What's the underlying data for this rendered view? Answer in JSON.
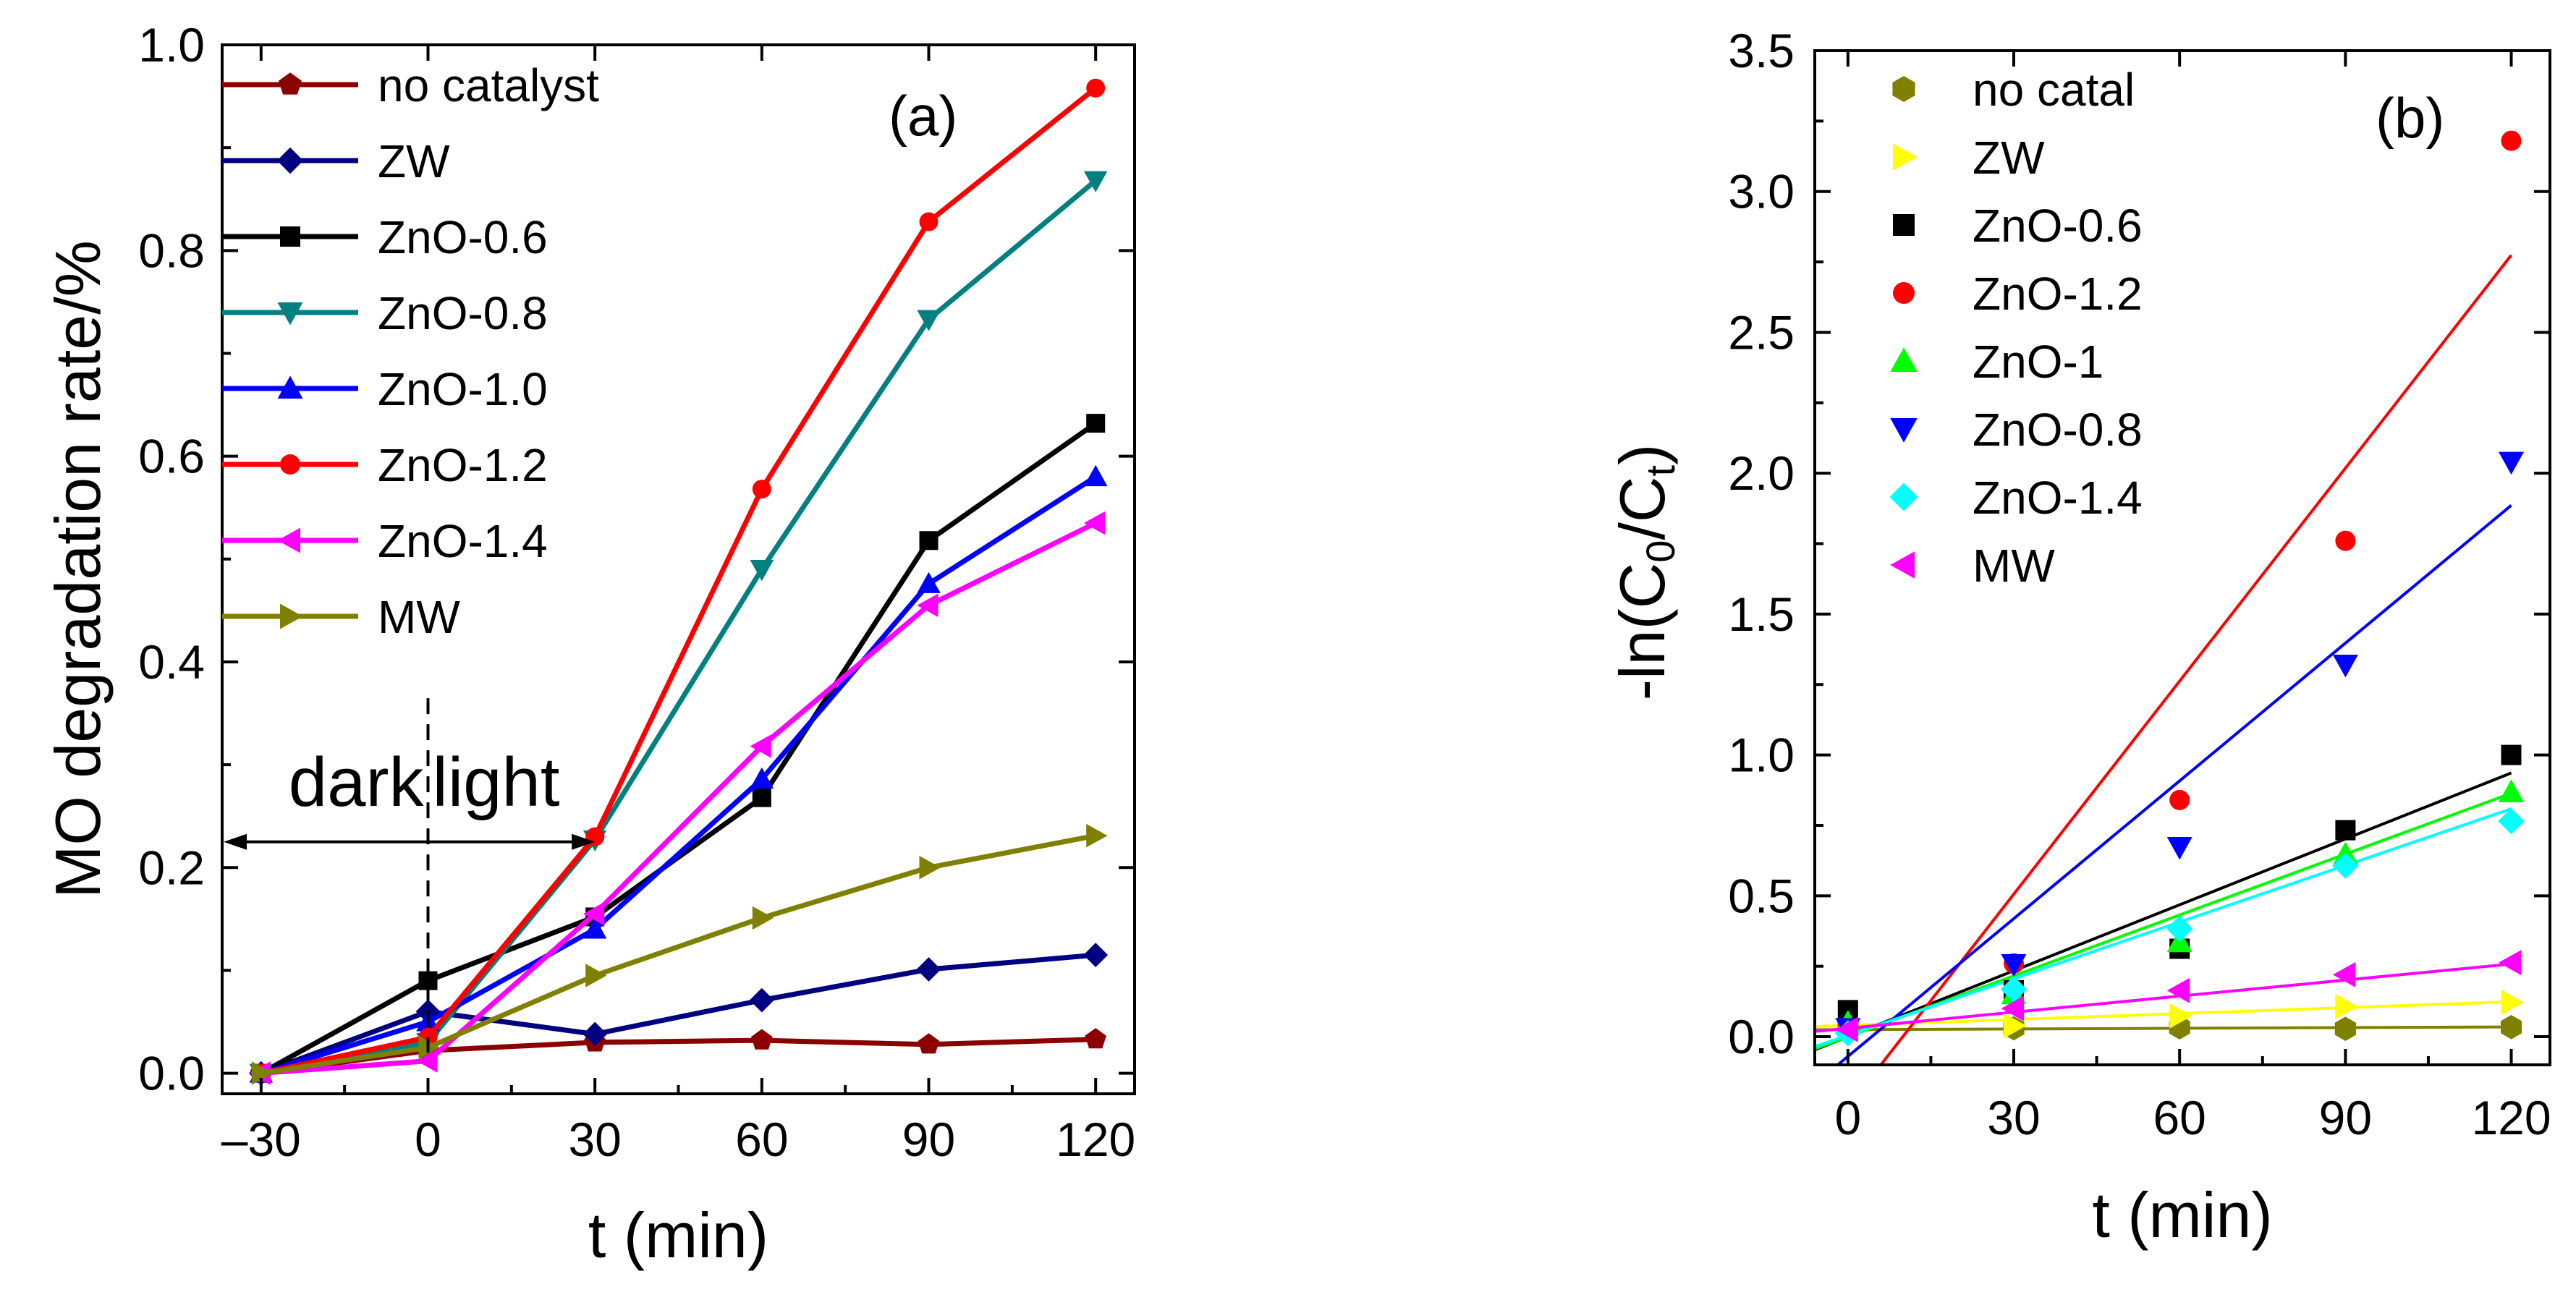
{
  "chart_data": [
    {
      "type": "line",
      "panel_label": "(a)",
      "xlabel": "t (min)",
      "ylabel": "MO degradation rate/%",
      "xlim": [
        -37,
        127
      ],
      "ylim": [
        -0.02,
        1.0
      ],
      "xticks": [
        -30,
        0,
        30,
        60,
        90,
        120
      ],
      "xtick_labels": [
        "–30",
        "0",
        "30",
        "60",
        "90",
        "120"
      ],
      "yticks": [
        0.0,
        0.2,
        0.4,
        0.6,
        0.8,
        1.0
      ],
      "ytick_labels": [
        "0.0",
        "0.2",
        "0.4",
        "0.6",
        "0.8",
        "1.0"
      ],
      "x": [
        -30,
        0,
        30,
        60,
        90,
        120
      ],
      "legend_position": "top-left",
      "series": [
        {
          "name": "no catalyst",
          "color": "#8b0000",
          "marker": "pentagon",
          "values": [
            0.0,
            0.022,
            0.03,
            0.032,
            0.028,
            0.033
          ]
        },
        {
          "name": "ZW",
          "color": "#000080",
          "marker": "diamond",
          "values": [
            0.0,
            0.06,
            0.038,
            0.071,
            0.101,
            0.115
          ]
        },
        {
          "name": "ZnO-0.6",
          "color": "#000000",
          "marker": "square",
          "values": [
            0.0,
            0.09,
            0.152,
            0.268,
            0.518,
            0.632
          ]
        },
        {
          "name": "ZnO-0.8",
          "color": "#008080",
          "marker": "triangle-down",
          "values": [
            0.0,
            0.03,
            0.227,
            0.49,
            0.733,
            0.868
          ]
        },
        {
          "name": "ZnO-1.0",
          "color": "#0000ff",
          "marker": "triangle-up",
          "values": [
            0.0,
            0.05,
            0.14,
            0.286,
            0.476,
            0.58
          ]
        },
        {
          "name": "ZnO-1.2",
          "color": "#ff0000",
          "marker": "circle",
          "values": [
            0.0,
            0.035,
            0.23,
            0.568,
            0.828,
            0.958
          ]
        },
        {
          "name": "ZnO-1.4",
          "color": "#ff00ff",
          "marker": "triangle-left",
          "values": [
            0.0,
            0.012,
            0.155,
            0.318,
            0.455,
            0.535
          ]
        },
        {
          "name": "MW",
          "color": "#808000",
          "marker": "triangle-right",
          "values": [
            0.0,
            0.025,
            0.095,
            0.151,
            0.2,
            0.231
          ]
        }
      ],
      "annotations": {
        "dark": "dark",
        "light": "light",
        "boundary_x": 0,
        "arrow_y": 0.225,
        "arrow_x": [
          -37,
          30
        ]
      }
    },
    {
      "type": "scatter",
      "panel_label": "(b)",
      "xlabel": "t (min)",
      "ylabel_prefix": "-ln(C",
      "ylabel_sub1": "0",
      "ylabel_mid": "/C",
      "ylabel_sub2": "t",
      "ylabel_suffix": ")",
      "xlim": [
        -6,
        127
      ],
      "ylim": [
        -0.1,
        3.5
      ],
      "xticks": [
        0,
        30,
        60,
        90,
        120
      ],
      "xtick_labels": [
        "0",
        "30",
        "60",
        "90",
        "120"
      ],
      "yticks": [
        0.0,
        0.5,
        1.0,
        1.5,
        2.0,
        2.5,
        3.0,
        3.5
      ],
      "ytick_labels": [
        "0.0",
        "0.5",
        "1.0",
        "1.5",
        "2.0",
        "2.5",
        "3.0",
        "3.5"
      ],
      "x": [
        0,
        30,
        60,
        90,
        120
      ],
      "legend_position": "top-left",
      "series": [
        {
          "name": "no catal",
          "color": "#808000",
          "marker": "hexagon",
          "values": [
            0.035,
            0.03,
            0.033,
            0.028,
            0.034
          ],
          "fit": [
            0.025,
            8e-05
          ]
        },
        {
          "name": "ZW",
          "color": "#ffff00",
          "marker": "triangle-right",
          "values": [
            0.06,
            0.039,
            0.074,
            0.107,
            0.122
          ],
          "fit": [
            0.04,
            0.0007
          ]
        },
        {
          "name": "ZnO-0.6",
          "color": "#000000",
          "marker": "square",
          "values": [
            0.094,
            0.165,
            0.312,
            0.733,
            1.0
          ],
          "fit": [
            0.0,
            0.0078
          ]
        },
        {
          "name": "ZnO-1.2",
          "color": "#ff0000",
          "marker": "circle",
          "values": [
            0.036,
            0.26,
            0.84,
            1.76,
            3.18
          ],
          "fit": [
            -0.25,
            0.0252
          ]
        },
        {
          "name": "ZnO-1",
          "color": "#00ff00",
          "marker": "triangle-up",
          "values": [
            0.05,
            0.151,
            0.336,
            0.647,
            0.868
          ],
          "fit": [
            0.0,
            0.0072
          ]
        },
        {
          "name": "ZnO-0.8",
          "color": "#0000ff",
          "marker": "triangle-down",
          "values": [
            0.03,
            0.257,
            0.673,
            1.32,
            2.04
          ],
          "fit": [
            -0.07,
            0.0163
          ]
        },
        {
          "name": "ZnO-1.4",
          "color": "#00ffff",
          "marker": "diamond",
          "values": [
            0.012,
            0.168,
            0.383,
            0.607,
            0.765
          ],
          "fit": [
            0.005,
            0.0067
          ]
        },
        {
          "name": "MW",
          "color": "#ff00ff",
          "marker": "triangle-left",
          "values": [
            0.025,
            0.1,
            0.164,
            0.22,
            0.263
          ],
          "fit": [
            0.03,
            0.0019
          ]
        }
      ]
    }
  ]
}
